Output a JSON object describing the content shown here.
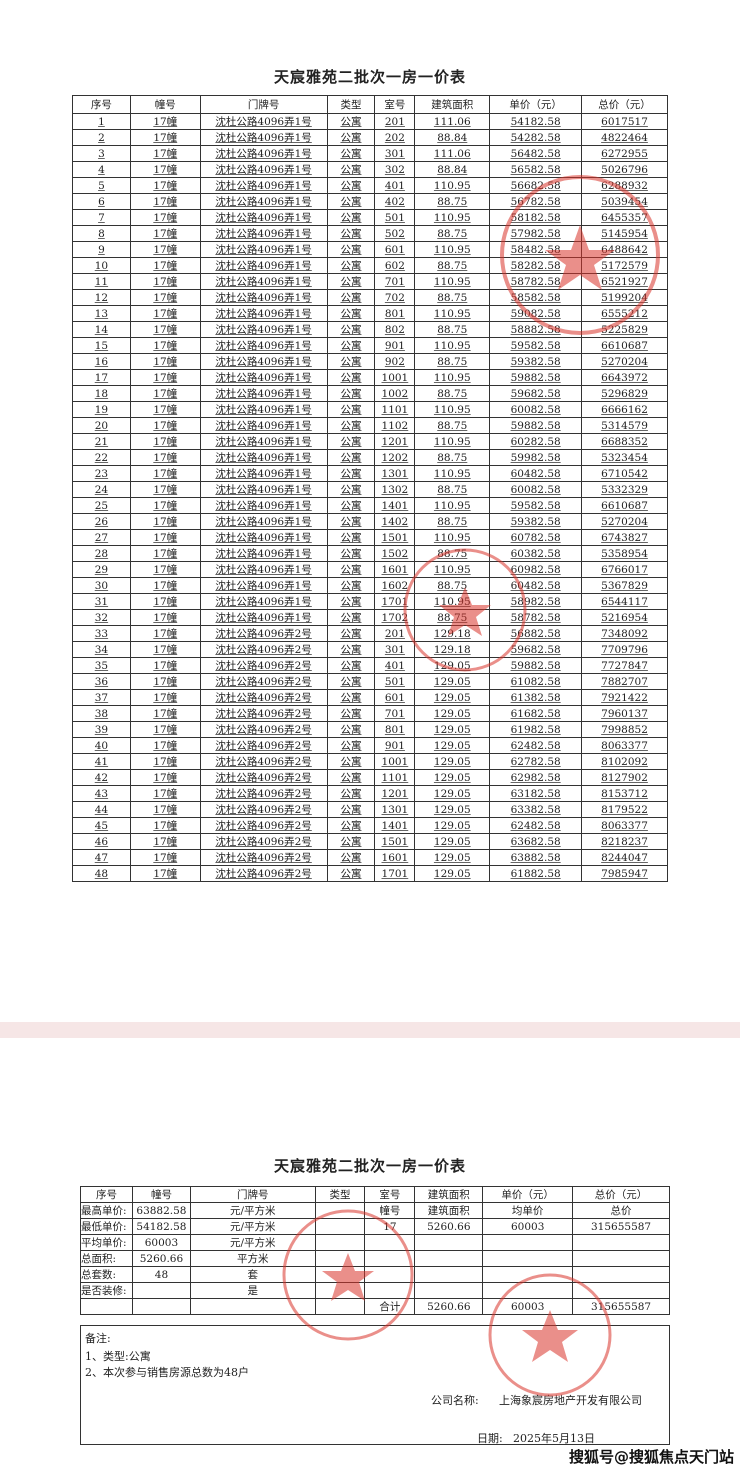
{
  "doc1": {
    "title": "天宸雅苑二批次一房一价表",
    "headers": [
      "序号",
      "幢号",
      "门牌号",
      "类型",
      "室号",
      "建筑面积",
      "单价（元）",
      "总价（元）"
    ],
    "rows": [
      [
        "1",
        "17幢",
        "沈杜公路4096弄1号",
        "公寓",
        "201",
        "111.06",
        "54182.58",
        "6017517"
      ],
      [
        "2",
        "17幢",
        "沈杜公路4096弄1号",
        "公寓",
        "202",
        "88.84",
        "54282.58",
        "4822464"
      ],
      [
        "3",
        "17幢",
        "沈杜公路4096弄1号",
        "公寓",
        "301",
        "111.06",
        "56482.58",
        "6272955"
      ],
      [
        "4",
        "17幢",
        "沈杜公路4096弄1号",
        "公寓",
        "302",
        "88.84",
        "56582.58",
        "5026796"
      ],
      [
        "5",
        "17幢",
        "沈杜公路4096弄1号",
        "公寓",
        "401",
        "110.95",
        "56682.58",
        "6288932"
      ],
      [
        "6",
        "17幢",
        "沈杜公路4096弄1号",
        "公寓",
        "402",
        "88.75",
        "56782.58",
        "5039454"
      ],
      [
        "7",
        "17幢",
        "沈杜公路4096弄1号",
        "公寓",
        "501",
        "110.95",
        "58182.58",
        "6455357"
      ],
      [
        "8",
        "17幢",
        "沈杜公路4096弄1号",
        "公寓",
        "502",
        "88.75",
        "57982.58",
        "5145954"
      ],
      [
        "9",
        "17幢",
        "沈杜公路4096弄1号",
        "公寓",
        "601",
        "110.95",
        "58482.58",
        "6488642"
      ],
      [
        "10",
        "17幢",
        "沈杜公路4096弄1号",
        "公寓",
        "602",
        "88.75",
        "58282.58",
        "5172579"
      ],
      [
        "11",
        "17幢",
        "沈杜公路4096弄1号",
        "公寓",
        "701",
        "110.95",
        "58782.58",
        "6521927"
      ],
      [
        "12",
        "17幢",
        "沈杜公路4096弄1号",
        "公寓",
        "702",
        "88.75",
        "58582.58",
        "5199204"
      ],
      [
        "13",
        "17幢",
        "沈杜公路4096弄1号",
        "公寓",
        "801",
        "110.95",
        "59082.58",
        "6555212"
      ],
      [
        "14",
        "17幢",
        "沈杜公路4096弄1号",
        "公寓",
        "802",
        "88.75",
        "58882.58",
        "5225829"
      ],
      [
        "15",
        "17幢",
        "沈杜公路4096弄1号",
        "公寓",
        "901",
        "110.95",
        "59582.58",
        "6610687"
      ],
      [
        "16",
        "17幢",
        "沈杜公路4096弄1号",
        "公寓",
        "902",
        "88.75",
        "59382.58",
        "5270204"
      ],
      [
        "17",
        "17幢",
        "沈杜公路4096弄1号",
        "公寓",
        "1001",
        "110.95",
        "59882.58",
        "6643972"
      ],
      [
        "18",
        "17幢",
        "沈杜公路4096弄1号",
        "公寓",
        "1002",
        "88.75",
        "59682.58",
        "5296829"
      ],
      [
        "19",
        "17幢",
        "沈杜公路4096弄1号",
        "公寓",
        "1101",
        "110.95",
        "60082.58",
        "6666162"
      ],
      [
        "20",
        "17幢",
        "沈杜公路4096弄1号",
        "公寓",
        "1102",
        "88.75",
        "59882.58",
        "5314579"
      ],
      [
        "21",
        "17幢",
        "沈杜公路4096弄1号",
        "公寓",
        "1201",
        "110.95",
        "60282.58",
        "6688352"
      ],
      [
        "22",
        "17幢",
        "沈杜公路4096弄1号",
        "公寓",
        "1202",
        "88.75",
        "59982.58",
        "5323454"
      ],
      [
        "23",
        "17幢",
        "沈杜公路4096弄1号",
        "公寓",
        "1301",
        "110.95",
        "60482.58",
        "6710542"
      ],
      [
        "24",
        "17幢",
        "沈杜公路4096弄1号",
        "公寓",
        "1302",
        "88.75",
        "60082.58",
        "5332329"
      ],
      [
        "25",
        "17幢",
        "沈杜公路4096弄1号",
        "公寓",
        "1401",
        "110.95",
        "59582.58",
        "6610687"
      ],
      [
        "26",
        "17幢",
        "沈杜公路4096弄1号",
        "公寓",
        "1402",
        "88.75",
        "59382.58",
        "5270204"
      ],
      [
        "27",
        "17幢",
        "沈杜公路4096弄1号",
        "公寓",
        "1501",
        "110.95",
        "60782.58",
        "6743827"
      ],
      [
        "28",
        "17幢",
        "沈杜公路4096弄1号",
        "公寓",
        "1502",
        "88.75",
        "60382.58",
        "5358954"
      ],
      [
        "29",
        "17幢",
        "沈杜公路4096弄1号",
        "公寓",
        "1601",
        "110.95",
        "60982.58",
        "6766017"
      ],
      [
        "30",
        "17幢",
        "沈杜公路4096弄1号",
        "公寓",
        "1602",
        "88.75",
        "60482.58",
        "5367829"
      ],
      [
        "31",
        "17幢",
        "沈杜公路4096弄1号",
        "公寓",
        "1701",
        "110.95",
        "58982.58",
        "6544117"
      ],
      [
        "32",
        "17幢",
        "沈杜公路4096弄1号",
        "公寓",
        "1702",
        "88.75",
        "58782.58",
        "5216954"
      ],
      [
        "33",
        "17幢",
        "沈杜公路4096弄2号",
        "公寓",
        "201",
        "129.18",
        "56882.58",
        "7348092"
      ],
      [
        "34",
        "17幢",
        "沈杜公路4096弄2号",
        "公寓",
        "301",
        "129.18",
        "59682.58",
        "7709796"
      ],
      [
        "35",
        "17幢",
        "沈杜公路4096弄2号",
        "公寓",
        "401",
        "129.05",
        "59882.58",
        "7727847"
      ],
      [
        "36",
        "17幢",
        "沈杜公路4096弄2号",
        "公寓",
        "501",
        "129.05",
        "61082.58",
        "7882707"
      ],
      [
        "37",
        "17幢",
        "沈杜公路4096弄2号",
        "公寓",
        "601",
        "129.05",
        "61382.58",
        "7921422"
      ],
      [
        "38",
        "17幢",
        "沈杜公路4096弄2号",
        "公寓",
        "701",
        "129.05",
        "61682.58",
        "7960137"
      ],
      [
        "39",
        "17幢",
        "沈杜公路4096弄2号",
        "公寓",
        "801",
        "129.05",
        "61982.58",
        "7998852"
      ],
      [
        "40",
        "17幢",
        "沈杜公路4096弄2号",
        "公寓",
        "901",
        "129.05",
        "62482.58",
        "8063377"
      ],
      [
        "41",
        "17幢",
        "沈杜公路4096弄2号",
        "公寓",
        "1001",
        "129.05",
        "62782.58",
        "8102092"
      ],
      [
        "42",
        "17幢",
        "沈杜公路4096弄2号",
        "公寓",
        "1101",
        "129.05",
        "62982.58",
        "8127902"
      ],
      [
        "43",
        "17幢",
        "沈杜公路4096弄2号",
        "公寓",
        "1201",
        "129.05",
        "63182.58",
        "8153712"
      ],
      [
        "44",
        "17幢",
        "沈杜公路4096弄2号",
        "公寓",
        "1301",
        "129.05",
        "63382.58",
        "8179522"
      ],
      [
        "45",
        "17幢",
        "沈杜公路4096弄2号",
        "公寓",
        "1401",
        "129.05",
        "62482.58",
        "8063377"
      ],
      [
        "46",
        "17幢",
        "沈杜公路4096弄2号",
        "公寓",
        "1501",
        "129.05",
        "63682.58",
        "8218237"
      ],
      [
        "47",
        "17幢",
        "沈杜公路4096弄2号",
        "公寓",
        "1601",
        "129.05",
        "63882.58",
        "8244047"
      ],
      [
        "48",
        "17幢",
        "沈杜公路4096弄2号",
        "公寓",
        "1701",
        "129.05",
        "61882.58",
        "7985947"
      ]
    ]
  },
  "doc2": {
    "title": "天宸雅苑二批次一房一价表",
    "headers": [
      "序号",
      "幢号",
      "门牌号",
      "类型",
      "室号",
      "建筑面积",
      "单价（元）",
      "总价（元）"
    ],
    "summary": [
      {
        "label": "最高单价:",
        "value": "63882.58",
        "unit": "元/平方米"
      },
      {
        "label": "最低单价:",
        "value": "54182.58",
        "unit": "元/平方米"
      },
      {
        "label": "平均单价:",
        "value": "60003",
        "unit": "元/平方米"
      },
      {
        "label": "总面积:",
        "value": "5260.66",
        "unit": "平方米"
      },
      {
        "label": "总套数:",
        "value": "48",
        "unit": "套"
      },
      {
        "label": "是否装修:",
        "value": "",
        "unit": "是"
      }
    ],
    "sub_headers": [
      "幢号",
      "建筑面积",
      "均单价",
      "总价"
    ],
    "building_row": [
      "17",
      "5260.66",
      "60003",
      "315655587"
    ],
    "total_label": "合计",
    "total_row": [
      "5260.66",
      "60003",
      "315655587"
    ],
    "notes_title": "备注:",
    "notes": [
      "1、类型:公寓",
      "2、本次参与销售房源总数为48户"
    ],
    "company_label": "公司名称:",
    "company_name": "上海象宸房地产开发有限公司",
    "date_label": "日期:",
    "date": "2025年5月13日"
  },
  "watermark": "搜狐号@搜狐焦点天门站",
  "colors": {
    "stamp": "#d9342b",
    "divider": "#f6e6e6"
  }
}
